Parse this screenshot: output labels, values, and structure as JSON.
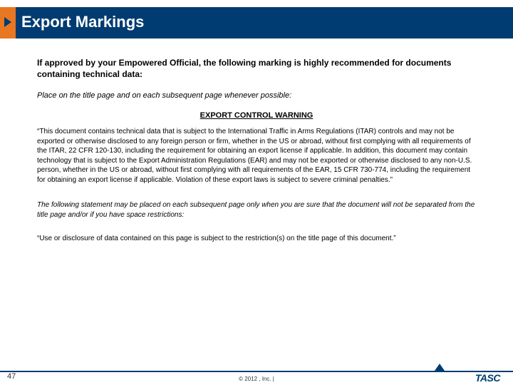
{
  "colors": {
    "brand_blue": "#003c71",
    "brand_orange": "#e87722",
    "background": "#ffffff",
    "text": "#000000"
  },
  "slide": {
    "title": "Export Markings",
    "intro": "If approved by your Empowered Official, the following marking is highly recommended for documents containing technical data:",
    "placement_note": "Place on the title page and on each subsequent page whenever possible:",
    "warning_heading": "EXPORT CONTROL WARNING",
    "warning_body": "“This document contains technical data that is subject to the International Traffic in Arms Regulations (ITAR) controls and may not be exported or otherwise disclosed to any foreign person or firm, whether in the US or abroad, without first complying with all requirements of the ITAR, 22 CFR 120-130, including the requirement for obtaining an export license if applicable.  In addition, this document may contain technology that is subject to the Export Administration Regulations (EAR) and may not be exported or otherwise disclosed to any non-U.S. person, whether in the US or abroad, without first complying with all requirements of the EAR, 15 CFR 730-774, including the requirement for obtaining an export license if applicable.  Violation of these export laws is subject to severe criminal penalties.”",
    "subsequent_note": "The following statement may be placed on each subsequent page only when you are sure that the document will not be separated from the title page and/or if you have space restrictions:",
    "restriction_statement": "“Use or disclosure of data contained on this page is subject to the restriction(s) on the title page of this document.”"
  },
  "footer": {
    "page_number": "47",
    "copyright": "© 2012 , Inc. |",
    "logo_text": "TASC"
  }
}
